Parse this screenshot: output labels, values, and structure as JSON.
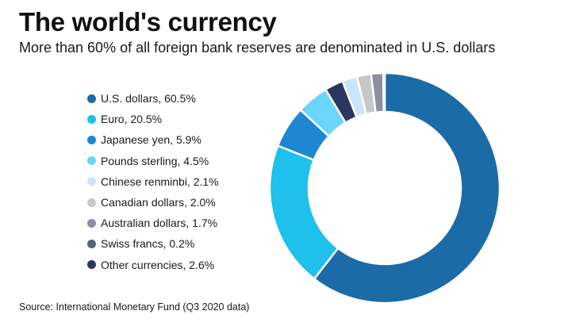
{
  "title": "The world's currency",
  "subtitle": "More than 60% of all foreign bank reserves are denominated in U.S. dollars",
  "source": "Source: International Monetary Fund (Q3 2020 data)",
  "chart_data": {
    "type": "pie",
    "title": "The world's currency",
    "subtitle": "More than 60% of all foreign bank reserves are denominated in U.S. dollars",
    "unit": "%",
    "legend_position": "left",
    "slices": [
      {
        "key": "usd",
        "label": "U.S. dollars, 60.5%",
        "value": 60.5,
        "color": "#1b6ba6"
      },
      {
        "key": "eur",
        "label": "Euro, 20.5%",
        "value": 20.5,
        "color": "#1fc0ec"
      },
      {
        "key": "jpy",
        "label": "Japanese yen, 5.9%",
        "value": 5.9,
        "color": "#1f87d2"
      },
      {
        "key": "gbp",
        "label": "Pounds sterling, 4.5%",
        "value": 4.5,
        "color": "#6ad6fb"
      },
      {
        "key": "cny",
        "label": "Chinese renminbi, 2.1%",
        "value": 2.1,
        "color": "#c8e5fb"
      },
      {
        "key": "cad",
        "label": "Canadian dollars, 2.0%",
        "value": 2.0,
        "color": "#c5c7c9"
      },
      {
        "key": "aud",
        "label": "Australian dollars, 1.7%",
        "value": 1.7,
        "color": "#8d8fa2"
      },
      {
        "key": "chf",
        "label": "Swiss francs, 0.2%",
        "value": 0.2,
        "color": "#5b6180"
      },
      {
        "key": "other",
        "label": "Other currencies, 2.6%",
        "value": 2.6,
        "color": "#2d3660"
      }
    ],
    "draw_order": [
      "usd",
      "eur",
      "jpy",
      "gbp",
      "other",
      "cny",
      "cad",
      "aud",
      "chf"
    ]
  }
}
